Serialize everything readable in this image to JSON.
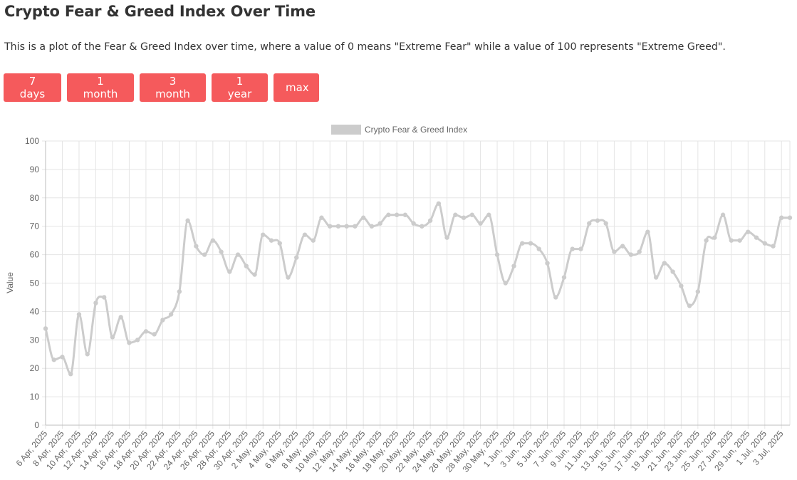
{
  "page": {
    "title": "Crypto Fear & Greed Index Over Time",
    "description": "This is a plot of the Fear & Greed Index over time, where a value of 0 means \"Extreme Fear\" while a value of 100 represents \"Extreme Greed\"."
  },
  "range_buttons": [
    "7 days",
    "1 month",
    "3 month",
    "1 year",
    "max"
  ],
  "colors": {
    "button_bg": "#f55a5c",
    "button_text": "#ffffff",
    "line": "#cccccc",
    "grid": "#e5e5e5"
  },
  "chart_data": {
    "type": "line",
    "title": "",
    "xlabel": "",
    "ylabel": "Value",
    "ylim": [
      0,
      100
    ],
    "yticks": [
      0,
      10,
      20,
      30,
      40,
      50,
      60,
      70,
      80,
      90,
      100
    ],
    "grid": true,
    "legend_position": "top-center",
    "tick_labels": [
      "6 Apr, 2025",
      "8 Apr, 2025",
      "10 Apr, 2025",
      "12 Apr, 2025",
      "14 Apr, 2025",
      "16 Apr, 2025",
      "18 Apr, 2025",
      "20 Apr, 2025",
      "22 Apr, 2025",
      "24 Apr, 2025",
      "26 Apr, 2025",
      "28 Apr, 2025",
      "30 Apr, 2025",
      "2 May, 2025",
      "4 May, 2025",
      "6 May, 2025",
      "8 May, 2025",
      "10 May, 2025",
      "12 May, 2025",
      "14 May, 2025",
      "16 May, 2025",
      "18 May, 2025",
      "20 May, 2025",
      "22 May, 2025",
      "24 May, 2025",
      "26 May, 2025",
      "28 May, 2025",
      "30 May, 2025",
      "1 Jun, 2025",
      "3 Jun, 2025",
      "5 Jun, 2025",
      "7 Jun, 2025",
      "9 Jun, 2025",
      "11 Jun, 2025",
      "13 Jun, 2025",
      "15 Jun, 2025",
      "17 Jun, 2025",
      "19 Jun, 2025",
      "21 Jun, 2025",
      "23 Jun, 2025",
      "25 Jun, 2025",
      "27 Jun, 2025",
      "29 Jun, 2025",
      "1 Jul, 2025",
      "3 Jul, 2025"
    ],
    "series": [
      {
        "name": "Crypto Fear & Greed Index",
        "color": "#cccccc",
        "values": [
          34,
          23,
          24,
          18,
          39,
          25,
          43,
          45,
          31,
          38,
          29,
          30,
          33,
          32,
          37,
          39,
          47,
          72,
          63,
          60,
          65,
          61,
          54,
          60,
          56,
          53,
          67,
          65,
          64,
          52,
          59,
          67,
          65,
          73,
          70,
          70,
          70,
          70,
          73,
          70,
          71,
          74,
          74,
          74,
          71,
          70,
          72,
          78,
          66,
          74,
          73,
          74,
          71,
          74,
          60,
          50,
          56,
          64,
          64,
          62,
          57,
          45,
          52,
          62,
          62,
          71,
          72,
          71,
          61,
          63,
          60,
          61,
          68,
          52,
          57,
          54,
          49,
          42,
          47,
          65,
          66,
          74,
          65,
          65,
          68,
          66,
          64,
          63,
          73,
          73
        ]
      }
    ]
  }
}
